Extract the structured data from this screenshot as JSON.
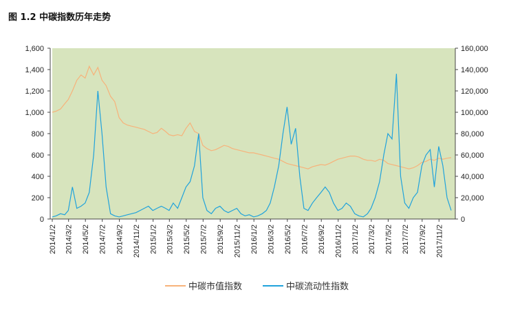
{
  "title": "图 1.2 中碳指数历年走势",
  "chart_data": {
    "type": "line",
    "title": "图 1.2 中碳指数历年走势",
    "x_tick_labels": [
      "2014/1/2",
      "2014/3/2",
      "2014/5/2",
      "2014/7/2",
      "2014/9/2",
      "2014/11/2",
      "2015/1/2",
      "2015/3/2",
      "2015/5/2",
      "2015/7/2",
      "2015/9/2",
      "2015/11/2",
      "2016/1/2",
      "2016/3/2",
      "2016/5/2",
      "2016/7/2",
      "2016/9/2",
      "2016/11/2",
      "2017/1/2",
      "2017/3/2",
      "2017/5/2",
      "2017/7/2",
      "2017/9/2",
      "2017/11/2"
    ],
    "y_left": {
      "range": [
        0,
        1600
      ],
      "ticks": [
        "0",
        "200",
        "400",
        "600",
        "800",
        "1,000",
        "1,200",
        "1,400",
        "1,600"
      ]
    },
    "y_right": {
      "range": [
        0,
        160000
      ],
      "ticks": [
        "0",
        "20,000",
        "40,000",
        "60,000",
        "80,000",
        "100,000",
        "120,000",
        "140,000",
        "160,000"
      ]
    },
    "grid": false,
    "legend_position": "bottom",
    "background_color": "#d7e4bd",
    "x": [
      "2014-01-02",
      "2014-01-16",
      "2014-02-01",
      "2014-02-16",
      "2014-03-01",
      "2014-03-16",
      "2014-04-01",
      "2014-04-16",
      "2014-05-01",
      "2014-05-16",
      "2014-06-01",
      "2014-06-16",
      "2014-07-01",
      "2014-07-16",
      "2014-08-01",
      "2014-08-16",
      "2014-09-01",
      "2014-09-16",
      "2014-10-01",
      "2014-10-16",
      "2014-11-01",
      "2014-11-16",
      "2014-12-01",
      "2014-12-16",
      "2015-01-01",
      "2015-01-16",
      "2015-02-01",
      "2015-02-16",
      "2015-03-01",
      "2015-03-16",
      "2015-04-01",
      "2015-04-16",
      "2015-05-01",
      "2015-05-16",
      "2015-06-01",
      "2015-06-16",
      "2015-07-01",
      "2015-07-16",
      "2015-08-01",
      "2015-08-16",
      "2015-09-01",
      "2015-09-16",
      "2015-10-01",
      "2015-10-16",
      "2015-11-01",
      "2015-11-16",
      "2015-12-01",
      "2015-12-16",
      "2016-01-01",
      "2016-01-16",
      "2016-02-01",
      "2016-02-16",
      "2016-03-01",
      "2016-03-16",
      "2016-04-01",
      "2016-04-16",
      "2016-05-01",
      "2016-05-16",
      "2016-06-01",
      "2016-06-16",
      "2016-07-01",
      "2016-07-16",
      "2016-08-01",
      "2016-08-16",
      "2016-09-01",
      "2016-09-16",
      "2016-10-01",
      "2016-10-16",
      "2016-11-01",
      "2016-11-16",
      "2016-12-01",
      "2016-12-16",
      "2017-01-01",
      "2017-01-16",
      "2017-02-01",
      "2017-02-16",
      "2017-03-01",
      "2017-03-16",
      "2017-04-01",
      "2017-04-16",
      "2017-05-01",
      "2017-05-16",
      "2017-06-01",
      "2017-06-16",
      "2017-07-01",
      "2017-07-16",
      "2017-08-01",
      "2017-08-16",
      "2017-09-01",
      "2017-09-16",
      "2017-10-01",
      "2017-10-16",
      "2017-11-01",
      "2017-11-16",
      "2017-12-01",
      "2017-12-16"
    ],
    "series": [
      {
        "name": "中碳市值指数",
        "axis": "left",
        "color": "#f7b27a",
        "values": [
          1000,
          1010,
          1030,
          1080,
          1120,
          1200,
          1300,
          1350,
          1320,
          1430,
          1350,
          1420,
          1300,
          1250,
          1150,
          1100,
          950,
          900,
          880,
          870,
          860,
          850,
          840,
          820,
          800,
          810,
          850,
          820,
          790,
          780,
          790,
          780,
          850,
          900,
          820,
          800,
          690,
          660,
          640,
          650,
          670,
          690,
          680,
          660,
          650,
          640,
          630,
          620,
          620,
          610,
          600,
          590,
          580,
          570,
          560,
          540,
          520,
          510,
          500,
          490,
          480,
          470,
          490,
          500,
          510,
          505,
          520,
          540,
          560,
          570,
          580,
          590,
          590,
          580,
          560,
          550,
          550,
          540,
          560,
          550,
          520,
          510,
          500,
          490,
          480,
          470,
          480,
          500,
          530,
          540,
          560,
          550,
          570,
          560,
          570,
          575
        ]
      },
      {
        "name": "中碳流动性指数",
        "axis": "right",
        "color": "#1fa2dc",
        "values": [
          2000,
          3000,
          5000,
          4000,
          8000,
          30000,
          10000,
          12000,
          15000,
          25000,
          60000,
          120000,
          80000,
          30000,
          5000,
          3000,
          2000,
          3000,
          4000,
          5000,
          6000,
          8000,
          10000,
          12000,
          8000,
          10000,
          12000,
          10000,
          8000,
          15000,
          10000,
          20000,
          30000,
          35000,
          50000,
          80000,
          20000,
          8000,
          5000,
          10000,
          12000,
          8000,
          6000,
          8000,
          10000,
          5000,
          3000,
          4000,
          2000,
          3000,
          5000,
          8000,
          15000,
          30000,
          50000,
          80000,
          105000,
          70000,
          85000,
          40000,
          10000,
          8000,
          15000,
          20000,
          25000,
          30000,
          25000,
          15000,
          8000,
          10000,
          15000,
          12000,
          5000,
          3000,
          2000,
          5000,
          10000,
          20000,
          35000,
          60000,
          80000,
          75000,
          136000,
          40000,
          15000,
          10000,
          20000,
          25000,
          50000,
          60000,
          65000,
          30000,
          68000,
          50000,
          20000,
          8000
        ]
      }
    ]
  }
}
